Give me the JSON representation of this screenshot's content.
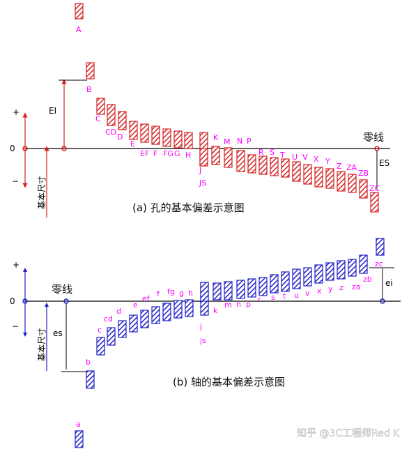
{
  "panel_a": {
    "caption": "(a) 孔的基本偏差示意图",
    "zero_line_label": "零线",
    "upper_symbol": "+",
    "zero_value": "0",
    "lower_symbol": "−",
    "basic_size_label": "基本尺寸",
    "EI_label": "EI",
    "ES_label": "ES",
    "letters": [
      "A",
      "B",
      "C",
      "CD",
      "D",
      "E",
      "EF",
      "F",
      "FG",
      "G",
      "H",
      "J",
      "JS",
      "K",
      "M",
      "N",
      "P",
      "R",
      "S",
      "T",
      "U",
      "V",
      "X",
      "Y",
      "Z",
      "ZA",
      "ZB",
      "ZC"
    ]
  },
  "panel_b": {
    "caption": "(b) 轴的基本偏差示意图",
    "zero_line_label": "零线",
    "upper_symbol": "+",
    "zero_value": "0",
    "lower_symbol": "−",
    "basic_size_label": "基本尺寸",
    "es_label": "es",
    "ei_label": "ei",
    "letters": [
      "a",
      "b",
      "c",
      "cd",
      "d",
      "e",
      "ef",
      "f",
      "fg",
      "g",
      "h",
      "j",
      "js",
      "k",
      "m",
      "n",
      "p",
      "r",
      "s",
      "t",
      "u",
      "v",
      "x",
      "y",
      "z",
      "za",
      "zb",
      "zc"
    ]
  },
  "watermark": "知乎 @3C工程师Red K",
  "colors": {
    "hole": "#d62020",
    "shaft": "#1f1fc8",
    "letters": "#ff00ff",
    "axis": "#000000"
  }
}
